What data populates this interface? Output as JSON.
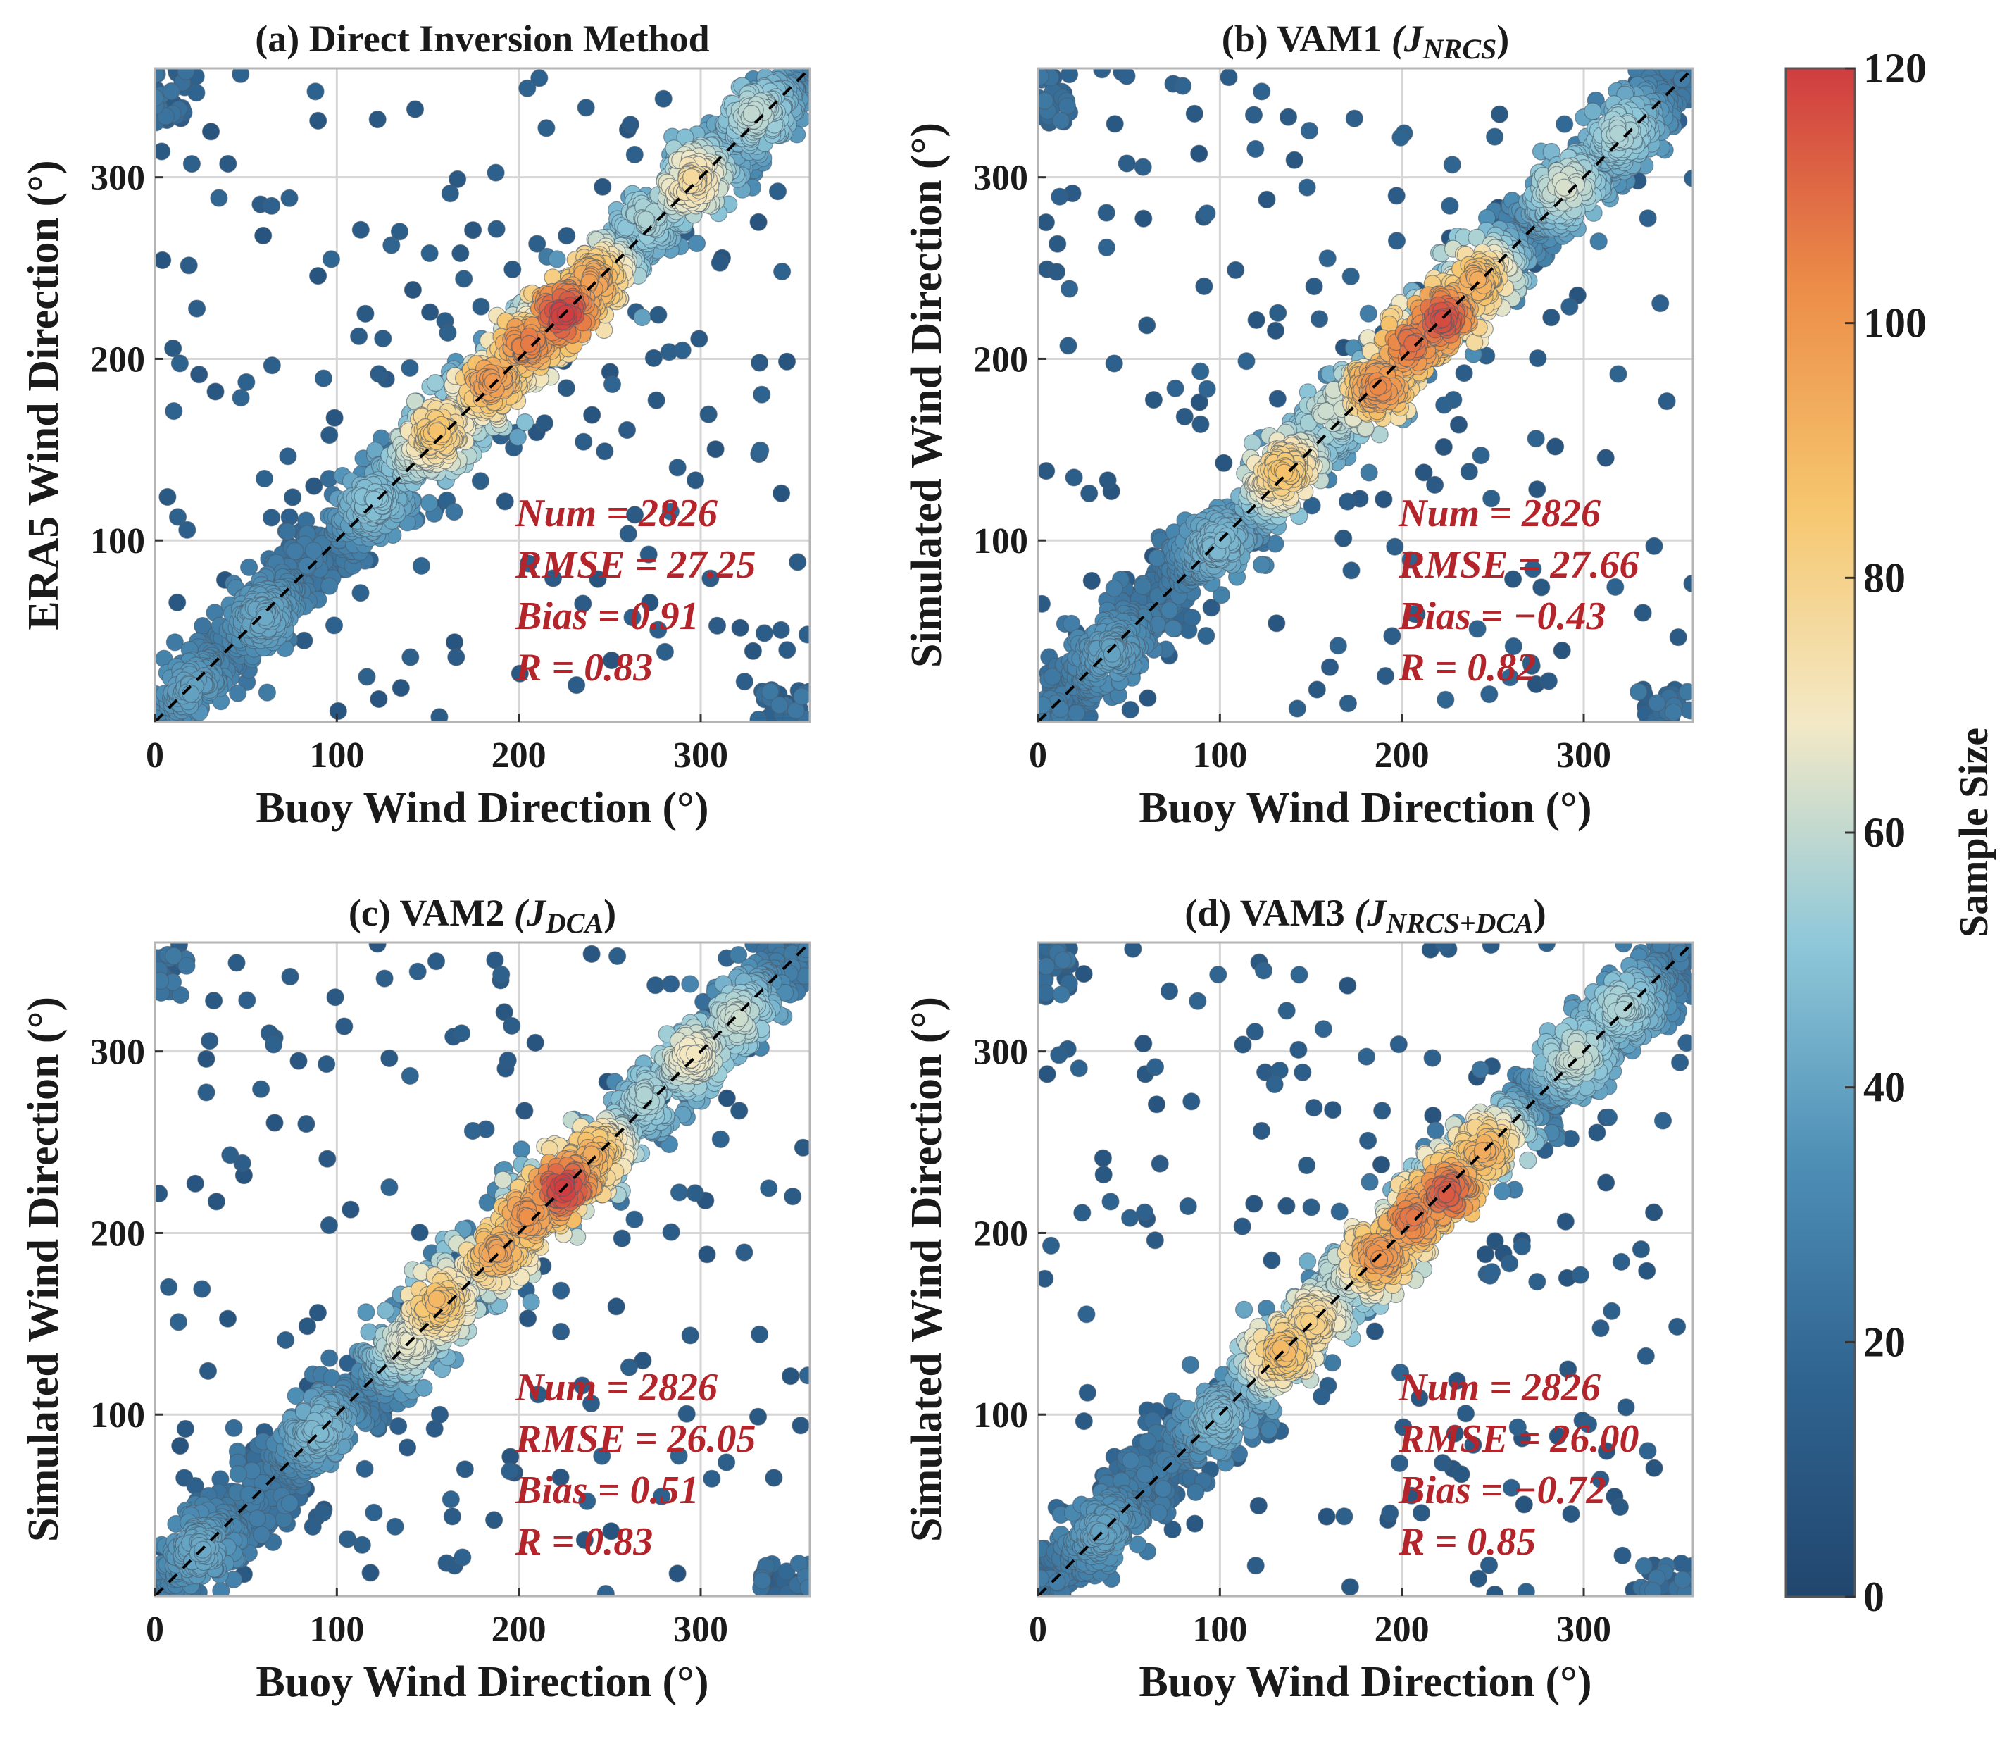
{
  "chart_data": [
    {
      "type": "scatter",
      "panel": "a",
      "title_main": "(a) Direct Inversion Method",
      "title_open": "",
      "title_sub": "",
      "title_close": "",
      "xlabel": "Buoy Wind Direction (°)",
      "ylabel": "ERA5 Wind Direction (°)",
      "xlim": [
        0,
        360
      ],
      "ylim": [
        0,
        360
      ],
      "xticks": [
        0,
        100,
        200,
        300
      ],
      "yticks": [
        100,
        200,
        300
      ],
      "stats": [
        "Num = 2826",
        "RMSE = 27.25",
        "Bias = 0.91",
        "R = 0.83"
      ],
      "num": 2826,
      "rmse": 27.25,
      "bias": 0.91,
      "r": 0.83,
      "hotspots": [
        [
          225,
          225,
          118
        ],
        [
          205,
          210,
          105
        ],
        [
          240,
          242,
          96
        ],
        [
          185,
          188,
          98
        ],
        [
          155,
          160,
          85
        ],
        [
          210,
          225,
          70
        ],
        [
          170,
          180,
          65
        ],
        [
          295,
          298,
          75
        ],
        [
          145,
          150,
          62
        ],
        [
          330,
          335,
          58
        ],
        [
          270,
          278,
          55
        ],
        [
          120,
          122,
          48
        ],
        [
          60,
          58,
          40
        ],
        [
          20,
          18,
          38
        ]
      ]
    },
    {
      "type": "scatter",
      "panel": "b",
      "title_main": "(b) VAM1 ",
      "title_open": "(J",
      "title_sub": "NRCS",
      "title_close": ")",
      "xlabel": "Buoy Wind Direction (°)",
      "ylabel": "Simulated Wind Direction (°)",
      "xlim": [
        0,
        360
      ],
      "ylim": [
        0,
        360
      ],
      "xticks": [
        0,
        100,
        200,
        300
      ],
      "yticks": [
        100,
        200,
        300
      ],
      "stats": [
        "Num = 2826",
        "RMSE = 27.66",
        "Bias = −0.43",
        "R = 0.82"
      ],
      "num": 2826,
      "rmse": 27.66,
      "bias": -0.43,
      "r": 0.82,
      "hotspots": [
        [
          222,
          222,
          115
        ],
        [
          205,
          208,
          108
        ],
        [
          188,
          185,
          102
        ],
        [
          240,
          242,
          92
        ],
        [
          135,
          138,
          85
        ],
        [
          175,
          185,
          70
        ],
        [
          215,
          225,
          68
        ],
        [
          290,
          295,
          62
        ],
        [
          160,
          170,
          60
        ],
        [
          320,
          325,
          55
        ],
        [
          100,
          98,
          45
        ],
        [
          40,
          38,
          38
        ]
      ]
    },
    {
      "type": "scatter",
      "panel": "c",
      "title_main": "(c) VAM2 ",
      "title_open": "(J",
      "title_sub": "DCA",
      "title_close": ")",
      "xlabel": "Buoy Wind Direction (°)",
      "ylabel": "Simulated Wind Direction (°)",
      "xlim": [
        0,
        360
      ],
      "ylim": [
        0,
        360
      ],
      "xticks": [
        0,
        100,
        200,
        300
      ],
      "yticks": [
        100,
        200,
        300
      ],
      "stats": [
        "Num = 2826",
        "RMSE = 26.05",
        "Bias = 0.51",
        "R = 0.83"
      ],
      "num": 2826,
      "rmse": 26.05,
      "bias": 0.51,
      "r": 0.83,
      "hotspots": [
        [
          225,
          225,
          118
        ],
        [
          205,
          210,
          100
        ],
        [
          240,
          242,
          92
        ],
        [
          188,
          190,
          95
        ],
        [
          155,
          162,
          88
        ],
        [
          210,
          225,
          72
        ],
        [
          140,
          140,
          65
        ],
        [
          175,
          180,
          62
        ],
        [
          295,
          298,
          68
        ],
        [
          320,
          318,
          60
        ],
        [
          270,
          275,
          55
        ],
        [
          90,
          92,
          45
        ],
        [
          25,
          25,
          40
        ]
      ]
    },
    {
      "type": "scatter",
      "panel": "d",
      "title_main": "(d) VAM3 ",
      "title_open": "(J",
      "title_sub": "NRCS+DCA",
      "title_close": ")",
      "xlabel": "Buoy Wind Direction (°)",
      "ylabel": "Simulated Wind Direction (°)",
      "xlim": [
        0,
        360
      ],
      "ylim": [
        0,
        360
      ],
      "xticks": [
        0,
        100,
        200,
        300
      ],
      "yticks": [
        100,
        200,
        300
      ],
      "stats": [
        "Num = 2826",
        "RMSE = 26.00",
        "Bias = −0.72",
        "R = 0.85"
      ],
      "num": 2826,
      "rmse": 26.0,
      "bias": -0.72,
      "r": 0.85,
      "hotspots": [
        [
          225,
          222,
          112
        ],
        [
          205,
          208,
          106
        ],
        [
          188,
          188,
          100
        ],
        [
          245,
          245,
          92
        ],
        [
          135,
          135,
          88
        ],
        [
          150,
          150,
          80
        ],
        [
          210,
          225,
          68
        ],
        [
          170,
          178,
          62
        ],
        [
          295,
          298,
          60
        ],
        [
          320,
          325,
          55
        ],
        [
          100,
          98,
          45
        ],
        [
          35,
          35,
          38
        ]
      ]
    }
  ],
  "colorbar": {
    "label": "Sample Size",
    "min": 0,
    "max": 120,
    "ticks": [
      0,
      20,
      40,
      60,
      80,
      100,
      120
    ],
    "colormap": [
      "#21466e",
      "#2f6490",
      "#4e8fb6",
      "#8fc8d9",
      "#f3e9c6",
      "#f6c66e",
      "#ec8d48",
      "#cf3d40"
    ]
  },
  "colors": {
    "stats_text": "#b3242b",
    "diagonal": "#000000",
    "grid": "#d6d6d6"
  }
}
